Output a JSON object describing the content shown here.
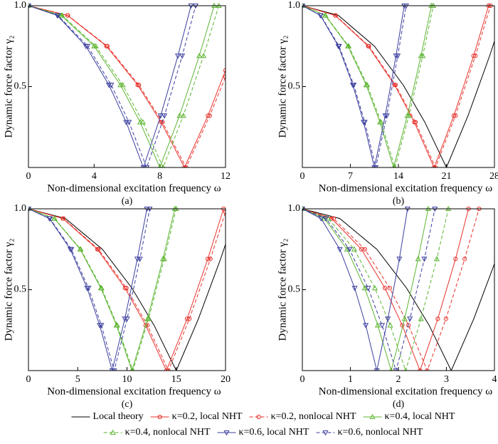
{
  "chart_data": [
    {
      "type": "line",
      "caption": "(a)",
      "xlabel": "Non-dimensional excitation frequency ω",
      "ylabel": "Dynamic force factor γ₂",
      "xlim": [
        0,
        12
      ],
      "ylim": [
        0,
        1
      ],
      "xticks": [
        0,
        4,
        8,
        12
      ],
      "yticks": [
        0.5,
        {
          "value": 1,
          "label": "1.0"
        }
      ],
      "series": [
        {
          "name": "κ=0.2, local NHT",
          "color": "#e8312a",
          "dash": false,
          "marker": "circle",
          "x": [
            0,
            2.38,
            4.75,
            6.65,
            8.08,
            9.5,
            10.93,
            12
          ],
          "values": [
            1,
            0.94,
            0.75,
            0.51,
            0.28,
            0,
            0.32,
            0.6
          ]
        },
        {
          "name": "κ=0.2, nonlocal NHT",
          "color": "#e8312a",
          "dash": true,
          "marker": "circle",
          "x": [
            0,
            2.4,
            4.8,
            6.72,
            8.16,
            9.6,
            11.04,
            12
          ],
          "values": [
            1,
            0.94,
            0.75,
            0.51,
            0.28,
            0,
            0.32,
            0.56
          ]
        },
        {
          "name": "κ=0.4, local NHT",
          "color": "#5cb531",
          "dash": false,
          "marker": "triangle-up",
          "x": [
            0,
            2,
            4,
            5.6,
            6.8,
            8,
            9.2,
            10.4,
            11.31
          ],
          "values": [
            1,
            0.94,
            0.75,
            0.51,
            0.28,
            0,
            0.32,
            0.69,
            1
          ]
        },
        {
          "name": "κ=0.4, nonlocal NHT",
          "color": "#5cb531",
          "dash": true,
          "marker": "triangle-up",
          "x": [
            0,
            2.05,
            4.1,
            5.74,
            6.97,
            8.2,
            9.43,
            10.66,
            11.59
          ],
          "values": [
            1,
            0.94,
            0.75,
            0.51,
            0.28,
            0,
            0.32,
            0.69,
            1
          ]
        },
        {
          "name": "κ=0.6, local NHT",
          "color": "#3b3f9e",
          "dash": false,
          "marker": "triangle-down",
          "x": [
            0,
            1.75,
            3.5,
            4.9,
            5.95,
            7,
            8.05,
            9.1,
            9.9
          ],
          "values": [
            1,
            0.94,
            0.75,
            0.51,
            0.28,
            0,
            0.32,
            0.69,
            1
          ]
        },
        {
          "name": "κ=0.6, nonlocal NHT",
          "color": "#3b3f9e",
          "dash": true,
          "marker": "triangle-down",
          "x": [
            0,
            1.8,
            3.6,
            5.04,
            6.12,
            7.2,
            8.28,
            9.36,
            10.18
          ],
          "values": [
            1,
            0.94,
            0.75,
            0.51,
            0.28,
            0,
            0.32,
            0.69,
            1
          ]
        }
      ]
    },
    {
      "type": "line",
      "caption": "(b)",
      "xlabel": "Non-dimensional excitation frequency ω",
      "ylabel": "Dynamic force factor γ₂",
      "xlim": [
        0,
        28
      ],
      "ylim": [
        0,
        1
      ],
      "xticks": [
        0,
        7,
        14,
        21,
        28
      ],
      "yticks": [
        0.5,
        {
          "value": 1,
          "label": "1.0"
        }
      ],
      "series": [
        {
          "name": "Local theory",
          "color": "#000000",
          "dash": false,
          "marker": null,
          "x": [
            0,
            5.25,
            10.5,
            14.7,
            17.85,
            21,
            24.15,
            27.3,
            28
          ],
          "values": [
            1,
            0.94,
            0.75,
            0.51,
            0.28,
            0,
            0.32,
            0.69,
            0.78
          ]
        },
        {
          "name": "κ=0.2, local NHT",
          "color": "#e8312a",
          "dash": false,
          "marker": "circle",
          "x": [
            0,
            4.8,
            9.6,
            13.44,
            16.32,
            19.2,
            22.08,
            24.96,
            27.15
          ],
          "values": [
            1,
            0.94,
            0.75,
            0.51,
            0.28,
            0,
            0.32,
            0.69,
            1
          ]
        },
        {
          "name": "κ=0.2, nonlocal NHT",
          "color": "#e8312a",
          "dash": true,
          "marker": "circle",
          "x": [
            0,
            4.85,
            9.7,
            13.58,
            16.49,
            19.4,
            22.31,
            25.22,
            27.43
          ],
          "values": [
            1,
            0.94,
            0.75,
            0.51,
            0.28,
            0,
            0.32,
            0.69,
            1
          ]
        },
        {
          "name": "κ=0.4, local NHT",
          "color": "#5cb531",
          "dash": false,
          "marker": "triangle-up",
          "x": [
            0,
            3.33,
            6.65,
            9.31,
            11.31,
            13.3,
            15.3,
            17.29,
            18.81
          ],
          "values": [
            1,
            0.94,
            0.75,
            0.51,
            0.28,
            0,
            0.32,
            0.69,
            1
          ]
        },
        {
          "name": "κ=0.4, nonlocal NHT",
          "color": "#5cb531",
          "dash": true,
          "marker": "triangle-up",
          "x": [
            0,
            3.38,
            6.75,
            9.45,
            11.48,
            13.5,
            15.53,
            17.55,
            19.09
          ],
          "values": [
            1,
            0.94,
            0.75,
            0.51,
            0.28,
            0,
            0.32,
            0.69,
            1
          ]
        },
        {
          "name": "κ=0.6, local NHT",
          "color": "#3b3f9e",
          "dash": false,
          "marker": "triangle-down",
          "x": [
            0,
            2.63,
            5.25,
            7.35,
            8.93,
            10.5,
            12.08,
            13.65,
            14.85
          ],
          "values": [
            1,
            0.94,
            0.75,
            0.51,
            0.28,
            0,
            0.32,
            0.69,
            1
          ]
        },
        {
          "name": "κ=0.6, nonlocal NHT",
          "color": "#3b3f9e",
          "dash": true,
          "marker": "triangle-down",
          "x": [
            0,
            2.68,
            5.35,
            7.49,
            9.1,
            10.7,
            12.31,
            13.91,
            15.13
          ],
          "values": [
            1,
            0.94,
            0.75,
            0.51,
            0.28,
            0,
            0.32,
            0.69,
            1
          ]
        }
      ]
    },
    {
      "type": "line",
      "caption": "(c)",
      "xlabel": "Non-dimensional excitation frequency ω",
      "ylabel": "Dynamic force factor γ₂",
      "xlim": [
        0,
        20
      ],
      "ylim": [
        0,
        1
      ],
      "xticks": [
        0,
        5,
        10,
        15,
        20
      ],
      "yticks": [
        0.5,
        {
          "value": 1,
          "label": "1.0"
        }
      ],
      "series": [
        {
          "name": "Local theory",
          "color": "#000000",
          "dash": false,
          "marker": null,
          "x": [
            0,
            3.75,
            7.5,
            10.5,
            12.75,
            15,
            17.25,
            19.5,
            20
          ],
          "values": [
            1,
            0.94,
            0.75,
            0.51,
            0.28,
            0,
            0.32,
            0.69,
            0.78
          ]
        },
        {
          "name": "κ=0.2, local NHT",
          "color": "#e8312a",
          "dash": false,
          "marker": "circle",
          "x": [
            0,
            3.5,
            7,
            9.8,
            11.9,
            14,
            16.1,
            18.2,
            19.8
          ],
          "values": [
            1,
            0.94,
            0.75,
            0.51,
            0.28,
            0,
            0.32,
            0.69,
            1
          ]
        },
        {
          "name": "κ=0.2, nonlocal NHT",
          "color": "#e8312a",
          "dash": true,
          "marker": "circle",
          "x": [
            0,
            3.55,
            7.1,
            9.94,
            12.07,
            14.2,
            16.33,
            18.46,
            20
          ],
          "values": [
            1,
            0.94,
            0.75,
            0.51,
            0.28,
            0,
            0.32,
            0.69,
            0.98
          ]
        },
        {
          "name": "κ=0.4, local NHT",
          "color": "#5cb531",
          "dash": false,
          "marker": "triangle-up",
          "x": [
            0,
            2.63,
            5.25,
            7.35,
            8.93,
            10.5,
            12.08,
            13.65,
            14.85
          ],
          "values": [
            1,
            0.94,
            0.75,
            0.51,
            0.28,
            0,
            0.32,
            0.69,
            1
          ]
        },
        {
          "name": "κ=0.4, nonlocal NHT",
          "color": "#5cb531",
          "dash": true,
          "marker": "triangle-up",
          "x": [
            0,
            2.65,
            5.3,
            7.42,
            9.01,
            10.6,
            12.19,
            13.78,
            14.99
          ],
          "values": [
            1,
            0.94,
            0.75,
            0.51,
            0.28,
            0,
            0.32,
            0.69,
            1
          ]
        },
        {
          "name": "κ=0.6, local NHT",
          "color": "#3b3f9e",
          "dash": false,
          "marker": "triangle-down",
          "x": [
            0,
            2.13,
            4.25,
            5.95,
            7.23,
            8.5,
            9.78,
            11.05,
            12.02
          ],
          "values": [
            1,
            0.94,
            0.75,
            0.51,
            0.28,
            0,
            0.32,
            0.69,
            1
          ]
        },
        {
          "name": "κ=0.6, nonlocal NHT",
          "color": "#3b3f9e",
          "dash": true,
          "marker": "triangle-down",
          "x": [
            0,
            2.18,
            4.35,
            6.09,
            7.4,
            8.7,
            10.01,
            11.31,
            12.3
          ],
          "values": [
            1,
            0.94,
            0.75,
            0.51,
            0.28,
            0,
            0.32,
            0.69,
            1
          ]
        }
      ]
    },
    {
      "type": "line",
      "caption": "(d)",
      "xlabel": "Non-dimensional excitation frequency ω",
      "ylabel": "Dynamic force factor γ₂",
      "xlim": [
        0,
        4
      ],
      "ylim": [
        0,
        1
      ],
      "xticks": [
        0,
        1,
        2,
        3,
        4
      ],
      "yticks": [
        0.5,
        {
          "value": 1,
          "label": "1.0"
        }
      ],
      "series": [
        {
          "name": "Local theory",
          "color": "#000000",
          "dash": false,
          "marker": null,
          "x": [
            0,
            0.78,
            1.55,
            2.17,
            2.64,
            3.1,
            3.57,
            4
          ],
          "values": [
            1,
            0.94,
            0.75,
            0.51,
            0.28,
            0,
            0.32,
            0.66
          ]
        },
        {
          "name": "κ=0.2, local NHT",
          "color": "#e8312a",
          "dash": false,
          "marker": "circle",
          "x": [
            0,
            0.61,
            1.23,
            1.72,
            2.08,
            2.45,
            2.82,
            3.19,
            3.46
          ],
          "values": [
            1,
            0.94,
            0.75,
            0.51,
            0.28,
            0,
            0.32,
            0.69,
            1
          ]
        },
        {
          "name": "κ=0.2, nonlocal NHT",
          "color": "#e8312a",
          "dash": true,
          "marker": "circle",
          "x": [
            0,
            0.65,
            1.3,
            1.82,
            2.21,
            2.6,
            2.99,
            3.38,
            3.68
          ],
          "values": [
            1,
            0.94,
            0.75,
            0.51,
            0.28,
            0,
            0.32,
            0.69,
            1
          ]
        },
        {
          "name": "κ=0.4, local NHT",
          "color": "#5cb531",
          "dash": false,
          "marker": "triangle-up",
          "x": [
            0,
            0.46,
            0.93,
            1.3,
            1.57,
            1.85,
            2.13,
            2.41,
            2.62
          ],
          "values": [
            1,
            0.94,
            0.75,
            0.51,
            0.28,
            0,
            0.32,
            0.69,
            1
          ]
        },
        {
          "name": "κ=0.4, nonlocal NHT",
          "color": "#5cb531",
          "dash": true,
          "marker": "triangle-up",
          "x": [
            0,
            0.54,
            1.08,
            1.51,
            1.83,
            2.15,
            2.47,
            2.8,
            3.04
          ],
          "values": [
            1,
            0.94,
            0.75,
            0.51,
            0.28,
            0,
            0.32,
            0.69,
            1
          ]
        },
        {
          "name": "κ=0.6, local NHT",
          "color": "#3b3f9e",
          "dash": false,
          "marker": "triangle-down",
          "x": [
            0,
            0.39,
            0.78,
            1.09,
            1.32,
            1.55,
            1.78,
            2.02,
            2.19
          ],
          "values": [
            1,
            0.94,
            0.75,
            0.51,
            0.28,
            0,
            0.32,
            0.69,
            1
          ]
        },
        {
          "name": "κ=0.6, nonlocal NHT",
          "color": "#3b3f9e",
          "dash": true,
          "marker": "triangle-down",
          "x": [
            0,
            0.49,
            0.98,
            1.37,
            1.66,
            1.95,
            2.24,
            2.54,
            2.76
          ],
          "values": [
            1,
            0.94,
            0.75,
            0.51,
            0.28,
            0,
            0.32,
            0.69,
            1
          ]
        }
      ]
    }
  ]
}
